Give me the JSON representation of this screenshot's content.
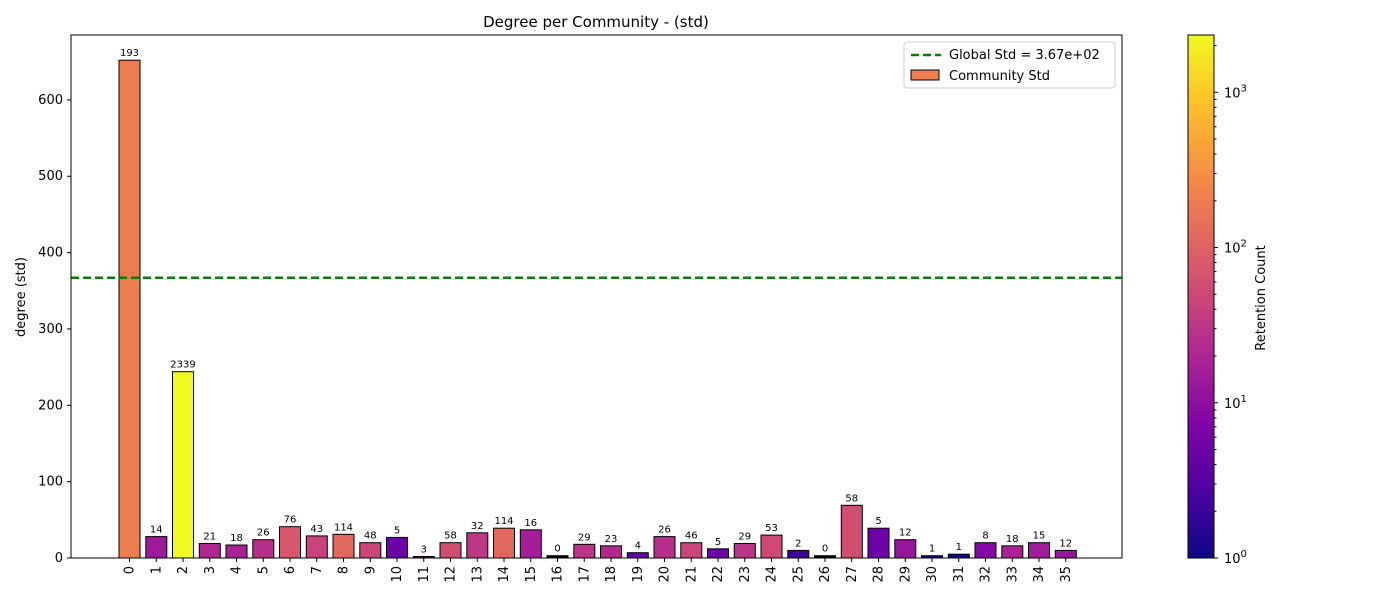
{
  "chart_data": {
    "type": "bar",
    "title": "Degree per Community - (std)",
    "xlabel": "",
    "ylabel": "degree (std)",
    "ylim": [
      0,
      685
    ],
    "yticks": [
      0,
      100,
      200,
      300,
      400,
      500,
      600
    ],
    "categories": [
      "0",
      "1",
      "2",
      "3",
      "4",
      "5",
      "6",
      "7",
      "8",
      "9",
      "10",
      "11",
      "12",
      "13",
      "14",
      "15",
      "16",
      "17",
      "18",
      "19",
      "20",
      "21",
      "22",
      "23",
      "24",
      "25",
      "26",
      "27",
      "28",
      "29",
      "30",
      "31",
      "32",
      "33",
      "34",
      "35"
    ],
    "values": [
      652,
      28,
      244,
      19,
      17,
      24,
      41,
      29,
      31,
      20,
      27,
      2,
      20,
      33,
      39,
      37,
      3,
      18,
      16,
      7,
      28,
      20,
      12,
      19,
      30,
      10,
      3,
      69,
      39,
      24,
      3,
      5,
      20,
      16,
      20,
      10
    ],
    "retention_counts": [
      193,
      14,
      2339,
      21,
      18,
      26,
      76,
      43,
      114,
      48,
      5,
      3,
      58,
      32,
      114,
      16,
      0,
      29,
      23,
      4,
      26,
      46,
      5,
      29,
      53,
      2,
      0,
      58,
      5,
      12,
      1,
      1,
      8,
      18,
      15,
      12
    ],
    "global_std": 367,
    "legend": {
      "placement": "top-right",
      "global_label": "Global Std = 3.67e+02",
      "series_label": "Community Std",
      "global_color": "#008000",
      "series_color": "#f07f4f"
    },
    "colorbar": {
      "label": "Retention Count",
      "scale": "log",
      "range": [
        1,
        2339
      ],
      "ticks": [
        {
          "value": 1,
          "base": "10",
          "exp": "0"
        },
        {
          "value": 10,
          "base": "10",
          "exp": "1"
        },
        {
          "value": 100,
          "base": "10",
          "exp": "2"
        },
        {
          "value": 1000,
          "base": "10",
          "exp": "3"
        }
      ],
      "colormap": "plasma"
    },
    "grid": false
  }
}
